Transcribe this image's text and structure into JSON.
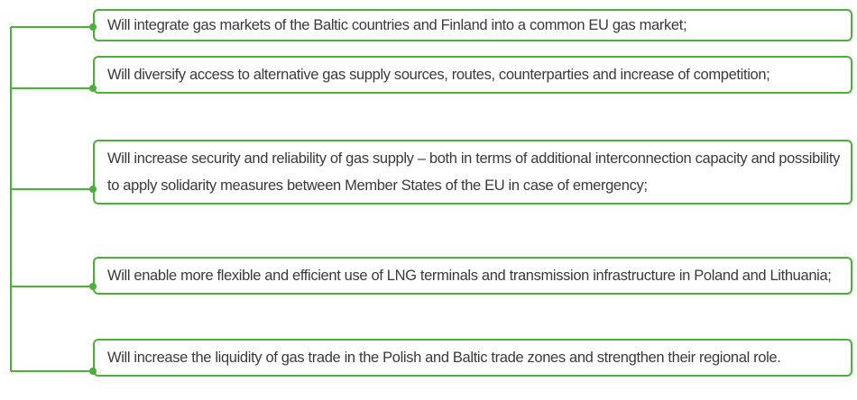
{
  "items": [
    "Will integrate gas markets of the Baltic countries and Finland into a common EU gas market;",
    "Will diversify access to alternative gas supply sources, routes, counterparties and increase of competition;",
    "Will increase security and reliability of gas supply – both in terms of additional interconnection capacity and possibility to apply solidarity measures between Member States of the EU in case of emergency;",
    "Will enable more flexible and efficient use of LNG terminals and transmission infrastructure in Poland and Lithuania;",
    "Will increase the liquidity of gas trade in the Polish and Baltic trade zones and strengthen their regional role."
  ]
}
